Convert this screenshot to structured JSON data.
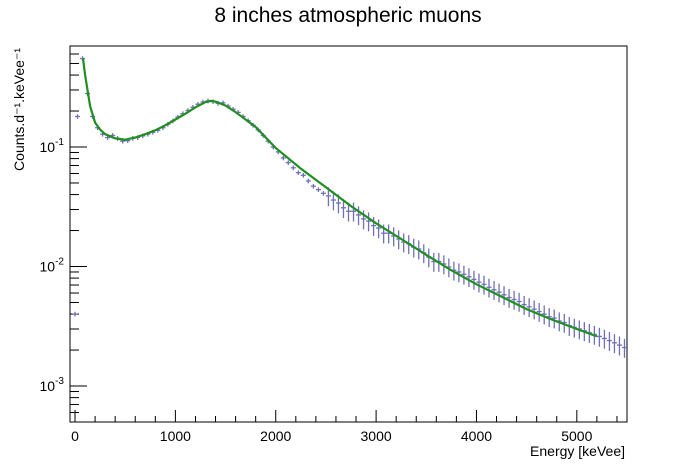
{
  "chart_data": {
    "type": "scatter",
    "title": "8 inches atmospheric muons",
    "xlabel": "Energy [keVee]",
    "ylabel": "Counts.d⁻¹.keVee⁻¹",
    "xlim": [
      -50,
      5500
    ],
    "ylim": [
      0.0005,
      0.7
    ],
    "yscale": "log",
    "x_ticks": [
      0,
      1000,
      2000,
      3000,
      4000,
      5000
    ],
    "x_tick_labels": [
      "0",
      "1000",
      "2000",
      "3000",
      "4000",
      "5000"
    ],
    "y_ticks": [
      0.001,
      0.01,
      0.1
    ],
    "y_tick_labels": [
      {
        "base": "10",
        "exp": "-3"
      },
      {
        "base": "10",
        "exp": "-2"
      },
      {
        "base": "10",
        "exp": "-1"
      }
    ],
    "grid": false,
    "series": [
      {
        "kind": "data-points",
        "color": "#7070b8",
        "x": [
          0,
          25,
          75,
          125,
          175,
          225,
          275,
          325,
          375,
          425,
          475,
          525,
          575,
          625,
          675,
          725,
          775,
          825,
          875,
          925,
          975,
          1025,
          1075,
          1125,
          1175,
          1225,
          1275,
          1325,
          1375,
          1425,
          1475,
          1525,
          1575,
          1625,
          1675,
          1725,
          1775,
          1825,
          1875,
          1925,
          1975,
          2025,
          2075,
          2125,
          2175,
          2225,
          2275,
          2325,
          2375,
          2425,
          2475,
          2525,
          2575,
          2625,
          2675,
          2725,
          2775,
          2825,
          2875,
          2925,
          2975,
          3025,
          3075,
          3125,
          3175,
          3225,
          3275,
          3325,
          3375,
          3425,
          3475,
          3525,
          3575,
          3625,
          3675,
          3725,
          3775,
          3825,
          3875,
          3925,
          3975,
          4025,
          4075,
          4125,
          4175,
          4225,
          4275,
          4325,
          4375,
          4425,
          4475,
          4525,
          4575,
          4625,
          4675,
          4725,
          4775,
          4825,
          4875,
          4925,
          4975,
          5025,
          5075,
          5125,
          5175,
          5225,
          5275,
          5325,
          5375,
          5425,
          5475
        ],
        "y": [
          0.004,
          0.18,
          0.55,
          0.28,
          0.18,
          0.145,
          0.128,
          0.12,
          0.125,
          0.118,
          0.112,
          0.113,
          0.118,
          0.12,
          0.124,
          0.128,
          0.133,
          0.138,
          0.145,
          0.155,
          0.165,
          0.178,
          0.19,
          0.202,
          0.215,
          0.228,
          0.238,
          0.243,
          0.24,
          0.232,
          0.234,
          0.22,
          0.207,
          0.195,
          0.18,
          0.166,
          0.152,
          0.139,
          0.125,
          0.112,
          0.1,
          0.091,
          0.081,
          0.074,
          0.067,
          0.061,
          0.058,
          0.052,
          0.047,
          0.044,
          0.041,
          0.039,
          0.036,
          0.034,
          0.031,
          0.029,
          0.029,
          0.027,
          0.025,
          0.024,
          0.022,
          0.021,
          0.019,
          0.019,
          0.018,
          0.017,
          0.016,
          0.0155,
          0.0145,
          0.014,
          0.013,
          0.012,
          0.011,
          0.011,
          0.0105,
          0.0099,
          0.0093,
          0.009,
          0.0086,
          0.0082,
          0.0078,
          0.0074,
          0.0071,
          0.0067,
          0.0064,
          0.0061,
          0.0058,
          0.0055,
          0.0053,
          0.0051,
          0.0048,
          0.0046,
          0.0044,
          0.0042,
          0.004,
          0.0038,
          0.0037,
          0.0035,
          0.0034,
          0.0032,
          0.0031,
          0.003,
          0.0029,
          0.0028,
          0.0027,
          0.0026,
          0.0025,
          0.0024,
          0.0023,
          0.0022,
          0.0021
        ],
        "y_err_rel": 0.18
      },
      {
        "kind": "fit-curve",
        "color": "#1f8f1f",
        "x": [
          80,
          100,
          150,
          200,
          250,
          300,
          400,
          500,
          600,
          700,
          800,
          900,
          1000,
          1100,
          1200,
          1300,
          1350,
          1400,
          1500,
          1600,
          1800,
          2000,
          2250,
          2500,
          2750,
          3000,
          3250,
          3500,
          3750,
          4000,
          4250,
          4500,
          4750,
          5000,
          5200
        ],
        "y": [
          0.55,
          0.4,
          0.22,
          0.16,
          0.14,
          0.128,
          0.118,
          0.115,
          0.12,
          0.128,
          0.138,
          0.152,
          0.17,
          0.19,
          0.215,
          0.238,
          0.243,
          0.24,
          0.222,
          0.196,
          0.147,
          0.098,
          0.066,
          0.046,
          0.032,
          0.023,
          0.017,
          0.0125,
          0.0093,
          0.0071,
          0.0056,
          0.0044,
          0.0036,
          0.003,
          0.0026
        ]
      }
    ]
  }
}
